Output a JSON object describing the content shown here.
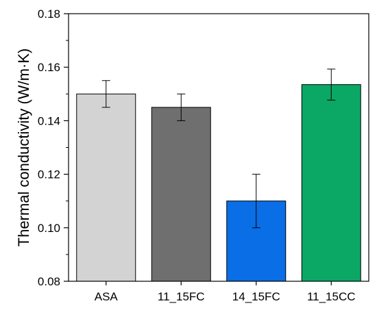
{
  "chart_data": {
    "type": "bar",
    "ylabel": "Thermal conductivity (W/m·K)",
    "xlabel": "",
    "ylim": [
      0.08,
      0.18
    ],
    "yticks": [
      0.08,
      0.1,
      0.12,
      0.14,
      0.16,
      0.18
    ],
    "ytick_labels": [
      "0.08",
      "0.10",
      "0.12",
      "0.14",
      "0.16",
      "0.18"
    ],
    "categories": [
      "ASA",
      "11_15FC",
      "14_15FC",
      "11_15CC"
    ],
    "values": [
      0.15,
      0.145,
      0.11,
      0.1535
    ],
    "errors": [
      0.005,
      0.005,
      0.01,
      0.0058
    ],
    "colors": [
      "#d3d3d3",
      "#6f6f6f",
      "#0a6ee6",
      "#0aa864"
    ],
    "grid": false,
    "legend": "none"
  }
}
